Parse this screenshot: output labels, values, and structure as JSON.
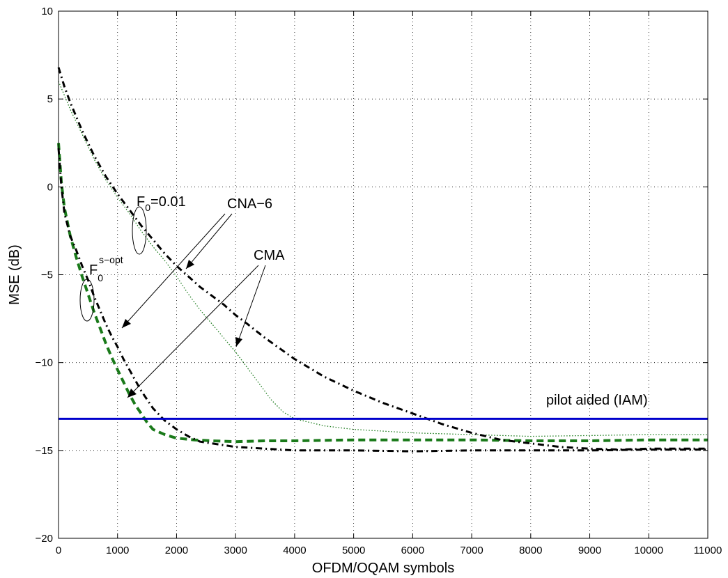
{
  "chart_data": {
    "type": "line",
    "xlabel": "OFDM/OQAM symbols",
    "ylabel": "MSE (dB)",
    "xlim": [
      0,
      11000
    ],
    "ylim": [
      -20,
      10
    ],
    "x_ticks": [
      0,
      1000,
      2000,
      3000,
      4000,
      5000,
      6000,
      7000,
      8000,
      9000,
      10000,
      11000
    ],
    "y_ticks": [
      -20,
      -15,
      -10,
      -5,
      0,
      5,
      10
    ],
    "grid": true,
    "series": [
      {
        "color": "#1a7a1a",
        "style": "dashed-thick",
        "x": [
          0,
          50,
          100,
          200,
          300,
          400,
          500,
          600,
          700,
          800,
          900,
          1000,
          1100,
          1200,
          1300,
          1400,
          1500,
          1600,
          1800,
          2000,
          2300,
          2600,
          3000,
          3500,
          4000,
          5000,
          6000,
          7000,
          8000,
          9000,
          10000,
          11000
        ],
        "y": [
          2.5,
          0.2,
          -1.2,
          -2.8,
          -4.0,
          -5.1,
          -6.1,
          -7.1,
          -8.0,
          -8.9,
          -9.7,
          -10.4,
          -11.1,
          -11.8,
          -12.4,
          -12.9,
          -13.4,
          -13.8,
          -14.1,
          -14.3,
          -14.4,
          -14.45,
          -14.5,
          -14.45,
          -14.45,
          -14.4,
          -14.4,
          -14.4,
          -14.45,
          -14.45,
          -14.4,
          -14.4
        ]
      },
      {
        "color": "#1a7a1a",
        "style": "dotted-thin",
        "x": [
          0,
          100,
          200,
          400,
          600,
          800,
          1000,
          1200,
          1400,
          1600,
          1800,
          2000,
          2200,
          2400,
          2600,
          2800,
          3000,
          3200,
          3400,
          3600,
          3800,
          4000,
          4500,
          5000,
          6000,
          7000,
          8000,
          9000,
          10000,
          11000
        ],
        "y": [
          6.0,
          5.2,
          4.4,
          3.0,
          1.6,
          0.4,
          -0.6,
          -1.5,
          -2.5,
          -3.4,
          -4.2,
          -5.1,
          -6.1,
          -7.0,
          -7.8,
          -8.6,
          -9.4,
          -10.3,
          -11.2,
          -12.1,
          -12.8,
          -13.2,
          -13.6,
          -13.8,
          -14.0,
          -14.1,
          -14.2,
          -14.15,
          -14.1,
          -14.1
        ]
      },
      {
        "color": "#000000",
        "style": "dashdot-thick",
        "x": [
          0,
          50,
          100,
          200,
          300,
          400,
          500,
          600,
          700,
          800,
          900,
          1000,
          1100,
          1200,
          1300,
          1400,
          1500,
          1600,
          1800,
          2000,
          2200,
          2400,
          2600,
          2800,
          3000,
          3500,
          4000,
          5000,
          6000,
          7000,
          8000,
          9000,
          10000,
          11000
        ],
        "y": [
          2.2,
          0.0,
          -1.5,
          -2.8,
          -3.6,
          -4.5,
          -5.3,
          -6.2,
          -7.0,
          -7.8,
          -8.5,
          -9.1,
          -9.8,
          -10.4,
          -11.0,
          -11.6,
          -12.1,
          -12.6,
          -13.3,
          -13.8,
          -14.2,
          -14.5,
          -14.6,
          -14.7,
          -14.8,
          -14.9,
          -15.0,
          -15.0,
          -15.05,
          -15.0,
          -15.0,
          -15.0,
          -14.95,
          -14.95
        ]
      },
      {
        "color": "#000000",
        "style": "dashdot-thick",
        "x": [
          0,
          100,
          200,
          400,
          600,
          800,
          1000,
          1200,
          1400,
          1600,
          1800,
          2000,
          2200,
          2400,
          2600,
          2800,
          3000,
          3200,
          3500,
          4000,
          4500,
          5000,
          5500,
          6000,
          6500,
          7000,
          7500,
          8000,
          8500,
          9000,
          9500,
          10000,
          11000
        ],
        "y": [
          6.8,
          5.7,
          4.8,
          3.2,
          1.8,
          0.6,
          -0.4,
          -1.3,
          -2.2,
          -3.0,
          -3.8,
          -4.5,
          -5.1,
          -5.7,
          -6.2,
          -6.7,
          -7.3,
          -7.8,
          -8.6,
          -9.8,
          -10.8,
          -11.6,
          -12.3,
          -12.9,
          -13.5,
          -14.0,
          -14.4,
          -14.6,
          -14.8,
          -14.9,
          -14.95,
          -14.9,
          -14.9
        ]
      },
      {
        "color": "#0000cc",
        "style": "solid",
        "x": [
          0,
          11000
        ],
        "y": [
          -13.2,
          -13.2
        ]
      }
    ],
    "annotations": [
      {
        "text": "F",
        "sub": "0",
        "suffix": "=0.01"
      },
      {
        "text": "F",
        "sub": "0",
        "sup": "s−opt"
      },
      {
        "text": "CNA−6"
      },
      {
        "text": "CMA"
      },
      {
        "text": "pilot aided (IAM)"
      }
    ]
  }
}
